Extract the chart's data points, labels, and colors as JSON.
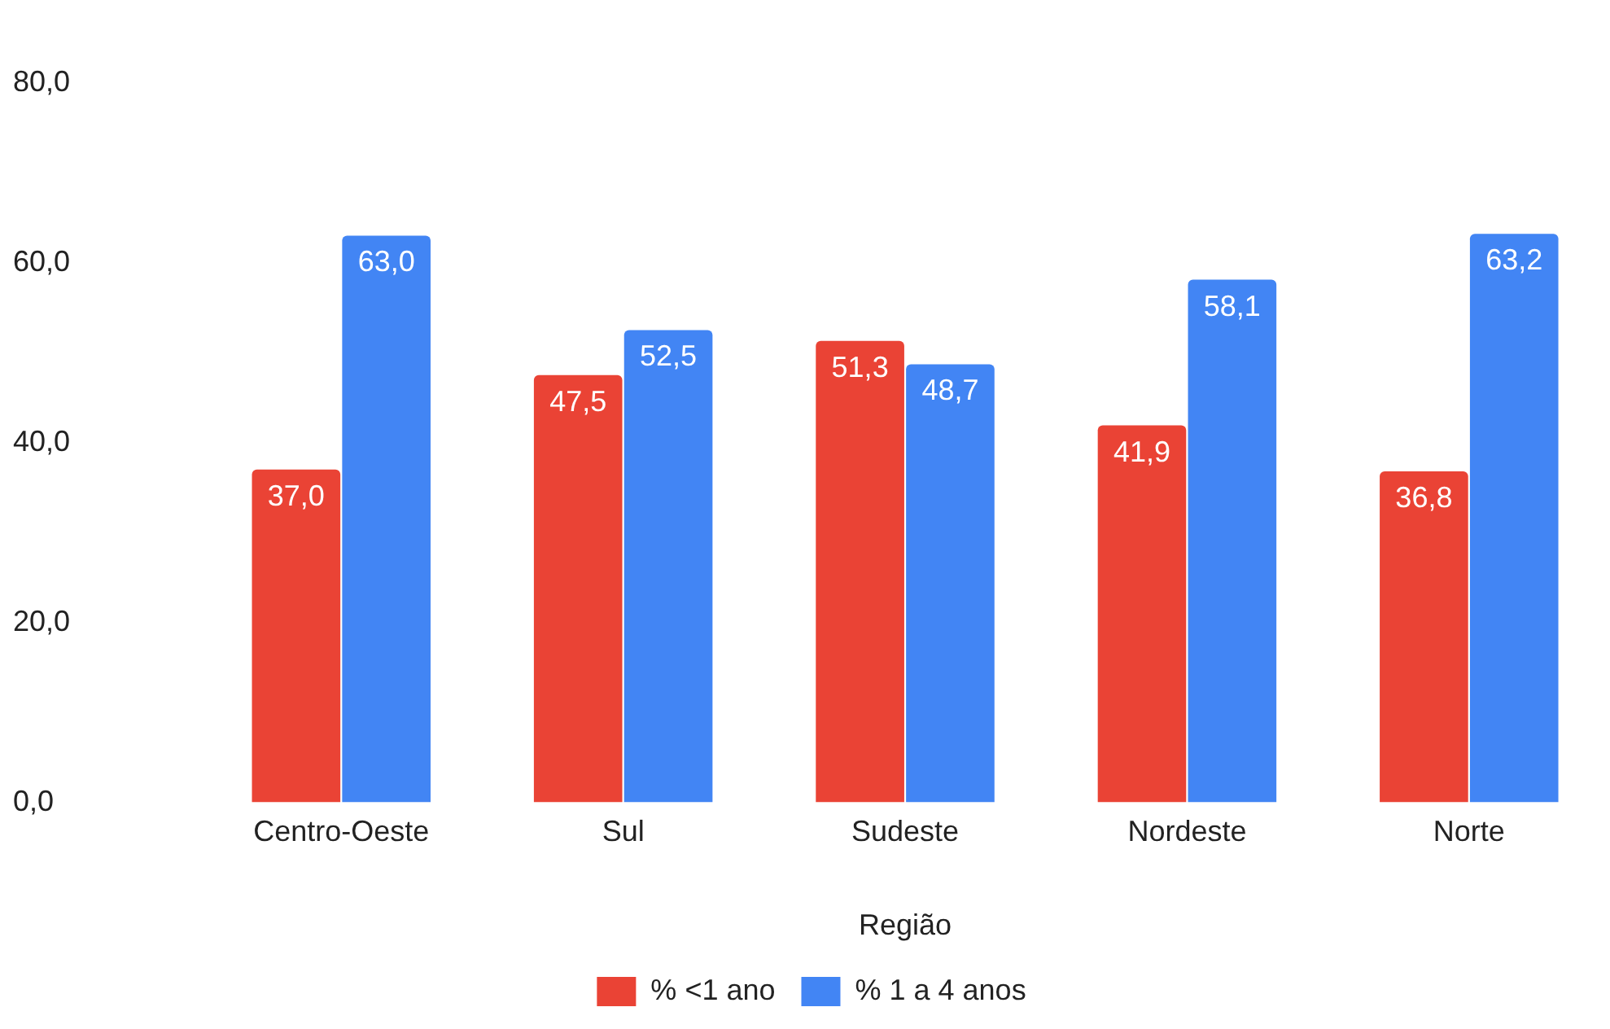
{
  "chart_data": {
    "type": "bar",
    "xlabel": "Região",
    "categories": [
      "Centro-Oeste",
      "Sul",
      "Sudeste",
      "Nordeste",
      "Norte"
    ],
    "series": [
      {
        "name": "% <1 ano",
        "color": "#ea4335",
        "values": [
          37.0,
          47.5,
          51.3,
          41.9,
          36.8
        ],
        "value_labels": [
          "37,0",
          "47,5",
          "51,3",
          "41,9",
          "36,8"
        ]
      },
      {
        "name": "% 1 a 4 anos",
        "color": "#4285f4",
        "values": [
          63.0,
          52.5,
          48.7,
          58.1,
          63.2
        ],
        "value_labels": [
          "63,0",
          "52,5",
          "48,7",
          "58,1",
          "63,2"
        ]
      }
    ],
    "ylim": [
      0,
      80
    ],
    "yticks": [
      {
        "value": 0,
        "label": "0,0"
      },
      {
        "value": 20,
        "label": "20,0"
      },
      {
        "value": 40,
        "label": "40,0"
      },
      {
        "value": 60,
        "label": "60,0"
      },
      {
        "value": 80,
        "label": "80,0"
      }
    ],
    "grid": false,
    "legend": "bottom"
  }
}
